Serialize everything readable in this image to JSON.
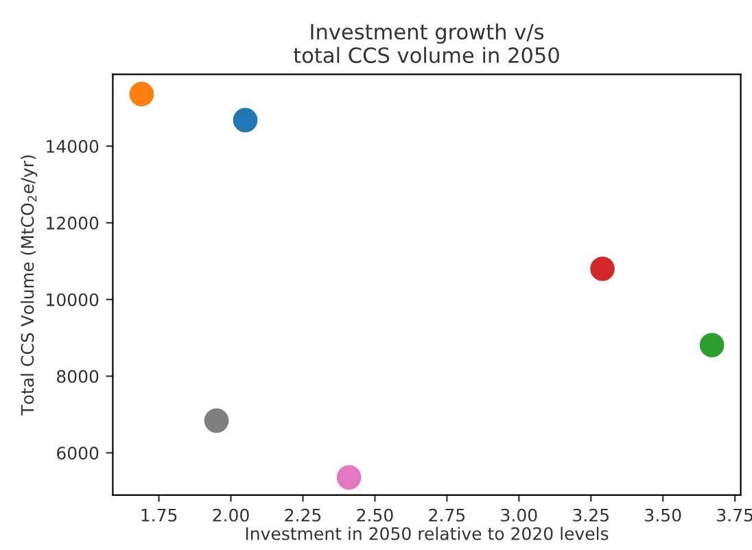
{
  "chart_data": {
    "type": "scatter",
    "title": "Investment growth v/s\ntotal CCS volume in 2050",
    "xlabel": "Investment in 2050 relative to 2020 levels",
    "ylabel": "Total CCS Volume (MtCO$_{2}$e/yr)",
    "x": [
      2.05,
      1.69,
      3.67,
      3.29,
      2.41,
      1.95
    ],
    "values": [
      14680,
      15360,
      8810,
      10800,
      5360,
      6840
    ],
    "colors": [
      "#1f77b4",
      "#ff7f0e",
      "#2ca02c",
      "#d62728",
      "#e377c2",
      "#7f7f7f"
    ],
    "marker": "circle",
    "grid": false,
    "legend": false,
    "xlim": [
      1.59,
      3.77
    ],
    "xticks": [
      {
        "value": 1.75,
        "label": "1.75"
      },
      {
        "value": 2.0,
        "label": "2.00"
      },
      {
        "value": 2.25,
        "label": "2.25"
      },
      {
        "value": 2.5,
        "label": "2.50"
      },
      {
        "value": 2.75,
        "label": "2.75"
      },
      {
        "value": 3.0,
        "label": "3.00"
      },
      {
        "value": 3.25,
        "label": "3.25"
      },
      {
        "value": 3.5,
        "label": "3.50"
      },
      {
        "value": 3.75,
        "label": "3.75"
      }
    ],
    "ylim": [
      4900,
      15875
    ],
    "yticks": [
      6000,
      8000,
      10000,
      12000,
      14000
    ]
  }
}
